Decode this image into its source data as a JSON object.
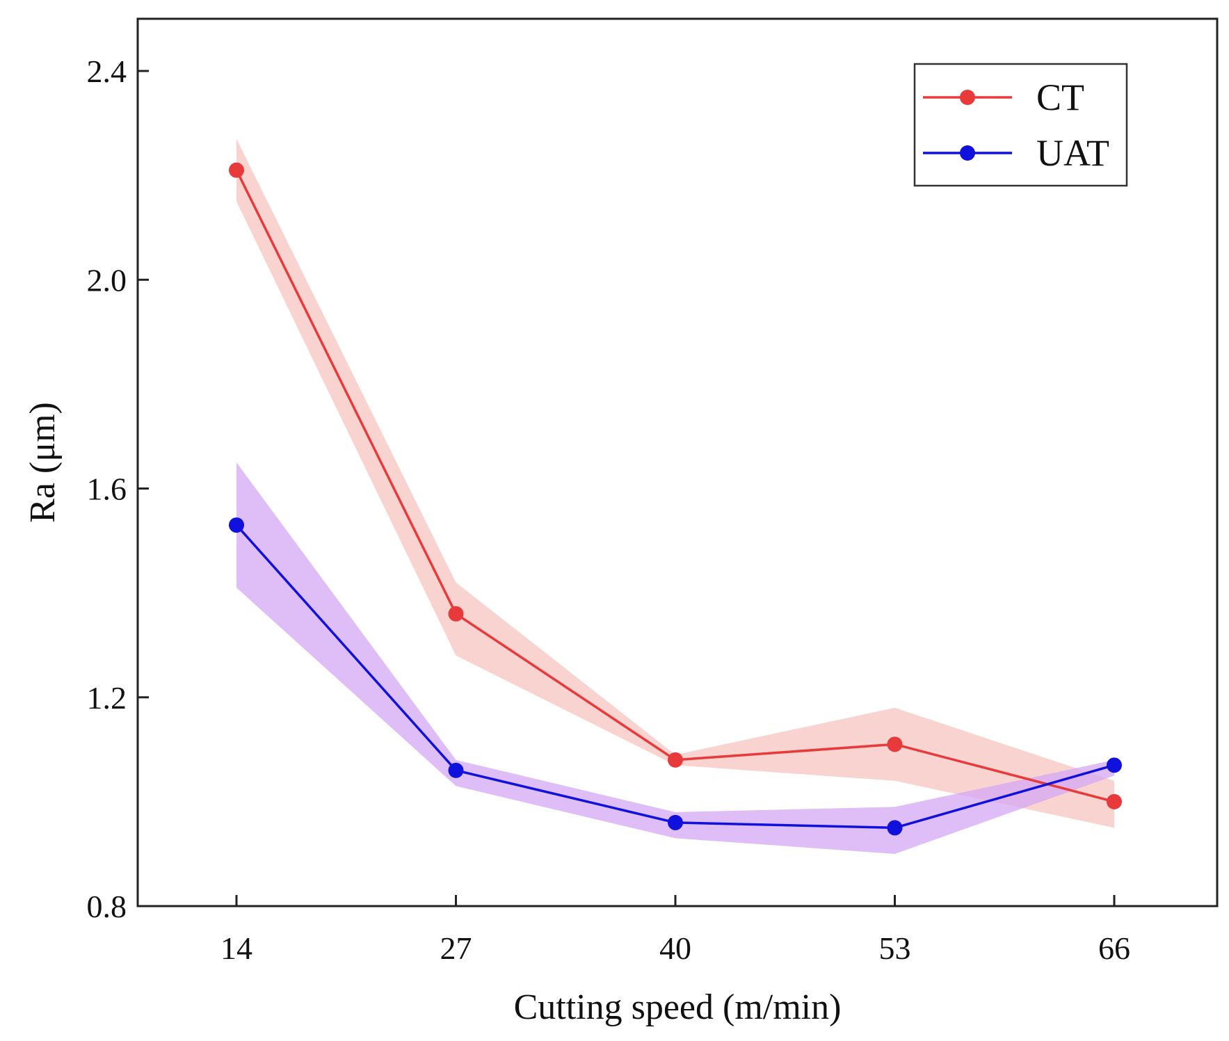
{
  "chart_data": {
    "type": "line",
    "title": "",
    "xlabel": "Cutting speed  (m/min)",
    "ylabel": "Ra (μm)",
    "x": [
      14,
      27,
      40,
      53,
      66
    ],
    "x_tick_labels": [
      "14",
      "27",
      "40",
      "53",
      "66"
    ],
    "ylim": [
      0.8,
      2.5
    ],
    "y_ticks": [
      0.8,
      1.2,
      1.6,
      2.0,
      2.4
    ],
    "y_tick_labels": [
      "0.8",
      "1.2",
      "1.6",
      "2.0",
      "2.4"
    ],
    "grid": false,
    "legend_position": "top-right",
    "series": [
      {
        "name": "CT",
        "color": "#e8393b",
        "band_color": "#f7c4c0",
        "values": [
          2.21,
          1.36,
          1.08,
          1.11,
          1.0
        ],
        "band_upper": [
          2.27,
          1.42,
          1.09,
          1.18,
          1.04
        ],
        "band_lower": [
          2.15,
          1.28,
          1.07,
          1.04,
          0.95
        ]
      },
      {
        "name": "UAT",
        "color": "#1111dd",
        "band_color": "#d4a8f4",
        "values": [
          1.53,
          1.06,
          0.96,
          0.95,
          1.07
        ],
        "band_upper": [
          1.65,
          1.08,
          0.98,
          0.99,
          1.08
        ],
        "band_lower": [
          1.41,
          1.03,
          0.93,
          0.9,
          1.05
        ]
      }
    ]
  }
}
